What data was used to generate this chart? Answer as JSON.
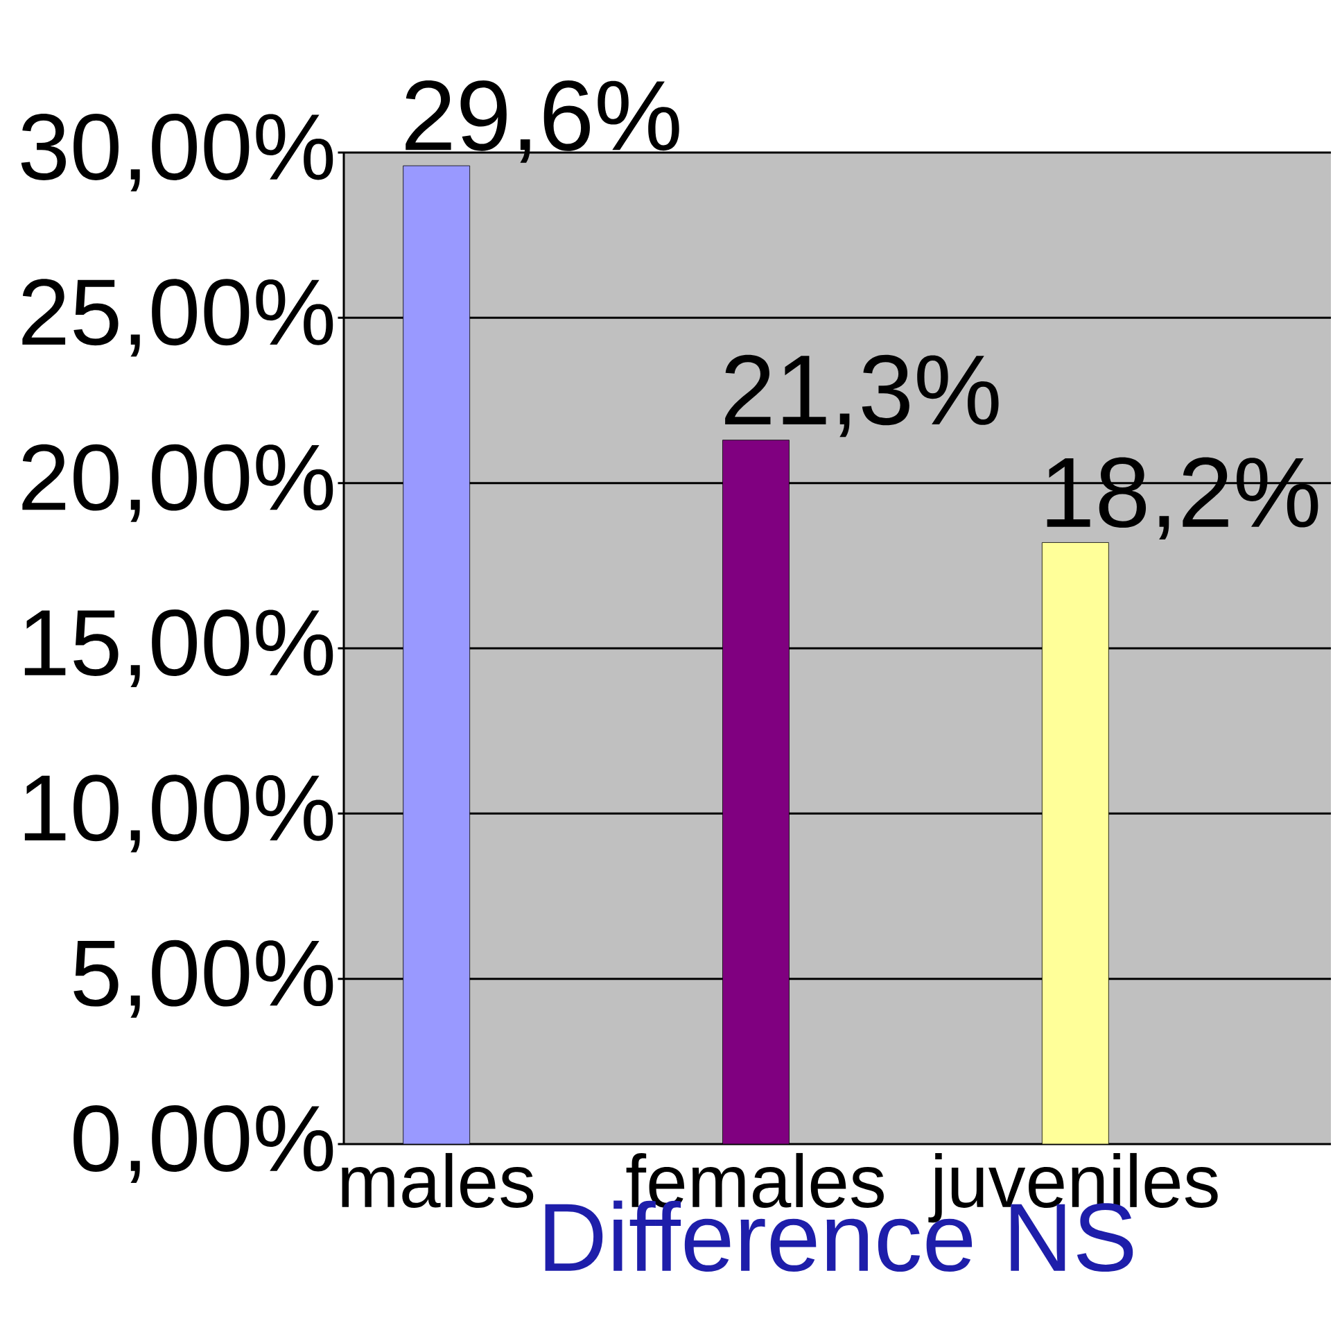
{
  "chart_data": {
    "type": "bar",
    "xlabel": "Difference NS",
    "categories": [
      "males",
      "females",
      "juveniles"
    ],
    "values": [
      29.6,
      21.3,
      18.2
    ],
    "colors": [
      "#9999ff",
      "#800080",
      "#ffff99"
    ],
    "value_labels": [
      "29,6%",
      "21,3%",
      "18,2%"
    ],
    "ylim": [
      0,
      30
    ],
    "yticks": [
      {
        "value": 0,
        "label": "0,00%"
      },
      {
        "value": 5,
        "label": "5,00%"
      },
      {
        "value": 10,
        "label": "10,00%"
      },
      {
        "value": 15,
        "label": "15,00%"
      },
      {
        "value": 20,
        "label": "20,00%"
      },
      {
        "value": 25,
        "label": "25,00%"
      },
      {
        "value": 30,
        "label": "30,00%"
      }
    ],
    "grid": "y"
  }
}
